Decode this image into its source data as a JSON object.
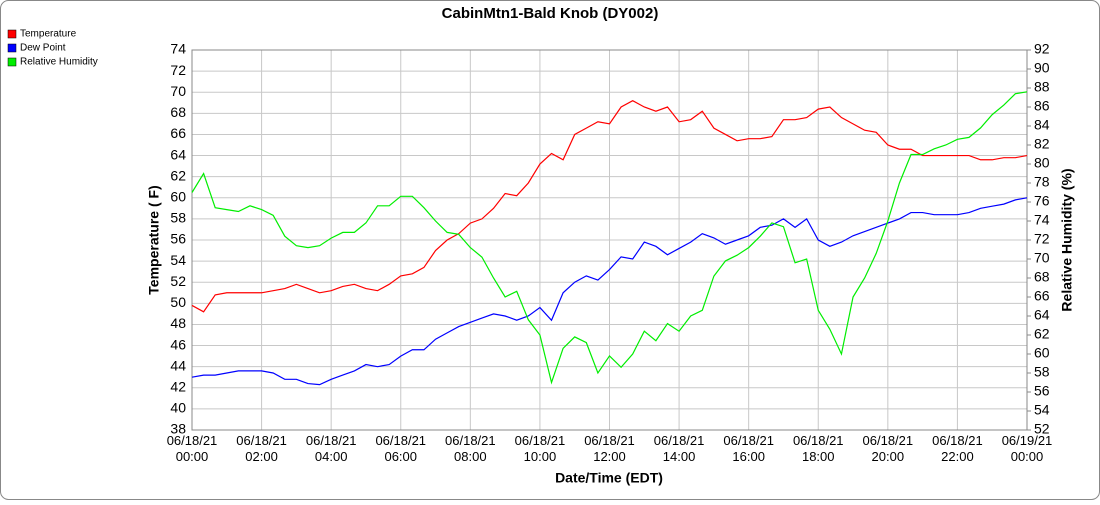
{
  "chart_data": {
    "type": "line",
    "title": "CabinMtn1-Bald Knob (DY002)",
    "x_label": "Date/Time (EDT)",
    "y_label": "Temperature ( F)",
    "y2_label": "Relative Humidity (%)",
    "x": [
      0,
      20,
      40,
      60,
      80,
      100,
      120,
      140,
      160,
      180,
      200,
      220,
      240,
      260,
      280,
      300,
      320,
      340,
      360,
      380,
      400,
      420,
      440,
      460,
      480,
      500,
      520,
      540,
      560,
      580,
      600,
      620,
      640,
      660,
      680,
      700,
      720,
      740,
      760,
      780,
      800,
      820,
      840,
      860,
      880,
      900,
      920,
      940,
      960,
      980,
      1000,
      1020,
      1040,
      1060,
      1080,
      1100,
      1120,
      1140,
      1160,
      1180,
      1200,
      1220,
      1240,
      1260,
      1280,
      1300,
      1320,
      1340,
      1360,
      1380,
      1400,
      1420,
      1440
    ],
    "xlim": [
      0,
      1440
    ],
    "xticks": [
      {
        "value": 0,
        "label": "06/18/21 00:00"
      },
      {
        "value": 120,
        "label": "06/18/21 02:00"
      },
      {
        "value": 240,
        "label": "06/18/21 04:00"
      },
      {
        "value": 360,
        "label": "06/18/21 06:00"
      },
      {
        "value": 480,
        "label": "06/18/21 08:00"
      },
      {
        "value": 600,
        "label": "06/18/21 10:00"
      },
      {
        "value": 720,
        "label": "06/18/21 12:00"
      },
      {
        "value": 840,
        "label": "06/18/21 14:00"
      },
      {
        "value": 960,
        "label": "06/18/21 16:00"
      },
      {
        "value": 1080,
        "label": "06/18/21 18:00"
      },
      {
        "value": 1200,
        "label": "06/18/21 20:00"
      },
      {
        "value": 1320,
        "label": "06/18/21 22:00"
      },
      {
        "value": 1440,
        "label": "06/19/21 00:00"
      }
    ],
    "ylim": [
      38,
      74
    ],
    "yticks": [
      38,
      40,
      42,
      44,
      46,
      48,
      50,
      52,
      54,
      56,
      58,
      60,
      62,
      64,
      66,
      68,
      70,
      72,
      74
    ],
    "y2lim": [
      52,
      92
    ],
    "y2ticks": [
      52,
      54,
      56,
      58,
      60,
      62,
      64,
      66,
      68,
      70,
      72,
      74,
      76,
      78,
      80,
      82,
      84,
      86,
      88,
      90,
      92
    ],
    "grid": true,
    "legend": "top-left",
    "series": [
      {
        "name": "Temperature",
        "color": "#ff0000",
        "values": [
          49.8,
          49.2,
          50.8,
          51.0,
          51.0,
          51.0,
          51.0,
          51.2,
          51.4,
          51.8,
          51.4,
          51.0,
          51.2,
          51.6,
          51.8,
          51.4,
          51.2,
          51.8,
          52.6,
          52.8,
          53.4,
          55.0,
          56.0,
          56.6,
          57.6,
          58.0,
          59.0,
          60.4,
          60.2,
          61.4,
          63.2,
          64.2,
          63.6,
          66.0,
          66.6,
          67.2,
          67.0,
          68.6,
          69.2,
          68.6,
          68.2,
          68.6,
          67.2,
          67.4,
          68.2,
          66.6,
          66.0,
          65.4,
          65.6,
          65.6,
          65.8,
          67.4,
          67.4,
          67.6,
          68.4,
          68.6,
          67.6,
          67.0,
          66.4,
          66.2,
          65.0,
          64.6,
          64.6,
          64.0,
          64.0,
          64.0,
          64.0,
          64.0,
          63.6,
          63.6,
          63.8,
          63.8,
          64.0
        ]
      },
      {
        "name": "Dew Point",
        "color": "#0000ff",
        "values": [
          43.0,
          43.2,
          43.2,
          43.4,
          43.6,
          43.6,
          43.6,
          43.4,
          42.8,
          42.8,
          42.4,
          42.3,
          42.8,
          43.2,
          43.6,
          44.2,
          44.0,
          44.2,
          45.0,
          45.6,
          45.6,
          46.6,
          47.2,
          47.8,
          48.2,
          48.6,
          49.0,
          48.8,
          48.4,
          48.8,
          49.6,
          48.4,
          51.0,
          52.0,
          52.6,
          52.2,
          53.2,
          54.4,
          54.2,
          55.8,
          55.4,
          54.6,
          55.2,
          55.8,
          56.6,
          56.2,
          55.6,
          56.0,
          56.4,
          57.2,
          57.4,
          58.0,
          57.2,
          58.0,
          56.0,
          55.4,
          55.8,
          56.4,
          56.8,
          57.2,
          57.6,
          58.0,
          58.6,
          58.6,
          58.4,
          58.4,
          58.4,
          58.6,
          59.0,
          59.2,
          59.4,
          59.8,
          60.0
        ]
      },
      {
        "name": "Relative Humidity",
        "color": "#00ee00",
        "axis": "y2",
        "values": [
          77,
          79,
          75.4,
          75.2,
          75.0,
          75.6,
          75.2,
          74.6,
          72.4,
          71.4,
          71.2,
          71.4,
          72.2,
          72.8,
          72.8,
          73.8,
          75.6,
          75.6,
          76.6,
          76.6,
          75.4,
          74.0,
          72.8,
          72.6,
          71.2,
          70.2,
          68.0,
          66.0,
          66.6,
          63.6,
          62.0,
          57.0,
          60.6,
          61.8,
          61.2,
          58.0,
          59.8,
          58.6,
          60.0,
          62.4,
          61.4,
          63.2,
          62.4,
          64.0,
          64.6,
          68.2,
          69.8,
          70.4,
          71.2,
          72.4,
          73.8,
          73.4,
          69.6,
          70.0,
          64.6,
          62.6,
          60.0,
          66.0,
          68.0,
          70.6,
          74.0,
          78.0,
          81.0,
          81.0,
          81.6,
          82.0,
          82.6,
          82.8,
          83.8,
          85.2,
          86.2,
          87.4,
          87.6
        ]
      }
    ]
  }
}
